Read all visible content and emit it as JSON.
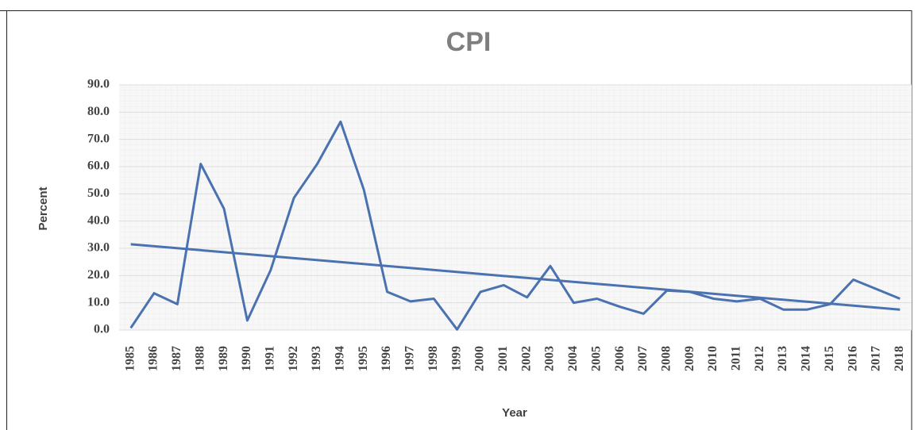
{
  "chart_data": {
    "type": "line",
    "title": "CPI",
    "x_label": "Year",
    "y_label": "Percent",
    "categories": [
      "1985",
      "1986",
      "1987",
      "1988",
      "1989",
      "1990",
      "1991",
      "1992",
      "1993",
      "1994",
      "1995",
      "1996",
      "1997",
      "1998",
      "1999",
      "2000",
      "2001",
      "2002",
      "2003",
      "2004",
      "2005",
      "2006",
      "2007",
      "2008",
      "2009",
      "2010",
      "2011",
      "2012",
      "2013",
      "2014",
      "2015",
      "2016",
      "2017",
      "2018"
    ],
    "values": [
      0.8,
      13.5,
      9.5,
      61,
      44.5,
      3.5,
      22,
      48.5,
      61,
      76.5,
      51.5,
      14,
      10.5,
      11.5,
      0.2,
      14,
      16.5,
      12,
      23.5,
      10,
      11.5,
      8.5,
      6,
      14.5,
      14,
      11.5,
      10.5,
      11.5,
      7.5,
      7.5,
      9.5,
      18.5,
      15,
      11.5
    ],
    "color": "#4a72b0",
    "trend": {
      "start": 31.5,
      "end": 7.5
    },
    "ylim": [
      0,
      90
    ],
    "yticks": [
      {
        "value": 0,
        "label": "0.0"
      },
      {
        "value": 10,
        "label": "10.0"
      },
      {
        "value": 20,
        "label": "20.0"
      },
      {
        "value": 30,
        "label": "30.0"
      },
      {
        "value": 40,
        "label": "40.0"
      },
      {
        "value": 50,
        "label": "50.0"
      },
      {
        "value": 60,
        "label": "60.0"
      },
      {
        "value": 70,
        "label": "70.0"
      },
      {
        "value": 80,
        "label": "80.0"
      },
      {
        "value": 90,
        "label": "90.0"
      }
    ],
    "grid": true
  }
}
